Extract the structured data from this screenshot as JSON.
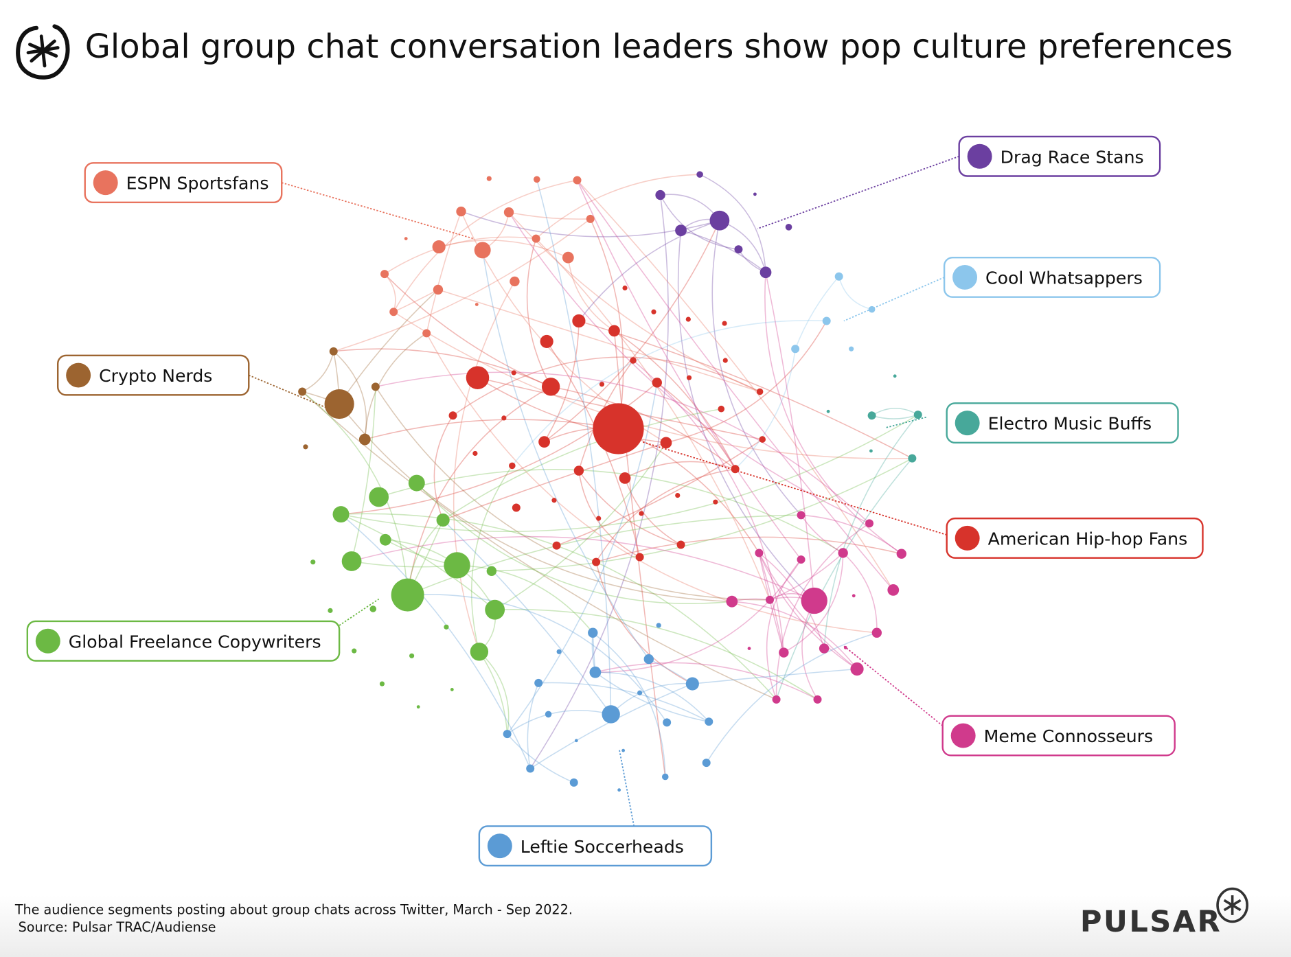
{
  "title": "Global group chat conversation leaders show pop culture preferences",
  "footer": {
    "caption": "The audience segments posting about group chats across Twitter, March - Sep 2022.",
    "source": "Source: Pulsar TRAC/Audiense",
    "brand": "PULSAR"
  },
  "groups": [
    {
      "id": "espn",
      "label": "ESPN Sportsfans",
      "color": "#e8735e"
    },
    {
      "id": "drag",
      "label": "Drag Race Stans",
      "color": "#6b3fa0"
    },
    {
      "id": "whatsapp",
      "label": "Cool Whatsappers",
      "color": "#8cc6ec"
    },
    {
      "id": "crypto",
      "label": "Crypto Nerds",
      "color": "#9c6430"
    },
    {
      "id": "electro",
      "label": "Electro Music Buffs",
      "color": "#47a89a"
    },
    {
      "id": "hiphop",
      "label": "American Hip-hop Fans",
      "color": "#d7332b"
    },
    {
      "id": "copy",
      "label": "Global Freelance Copywriters",
      "color": "#6cb944"
    },
    {
      "id": "meme",
      "label": "Meme Connosseurs",
      "color": "#d03a8c"
    },
    {
      "id": "leftie",
      "label": "Leftie Soccerheads",
      "color": "#5b9bd5"
    }
  ]
}
